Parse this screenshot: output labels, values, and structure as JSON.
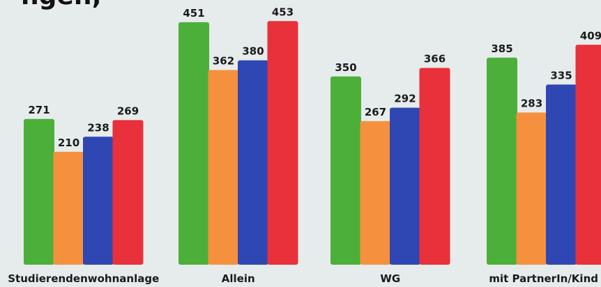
{
  "title_fragment": "ngen;",
  "colors": {
    "background": "#e6eceb",
    "series": [
      "#4caf3a",
      "#f5913e",
      "#2f47b3",
      "#e8313a"
    ]
  },
  "chart_data": {
    "type": "bar",
    "title": "",
    "xlabel": "",
    "ylabel": "",
    "ylim": [
      0,
      460
    ],
    "grid": false,
    "legend": "none",
    "categories": [
      "Studierendenwohnanlage",
      "Allein",
      "WG",
      "mit PartnerIn/Kind"
    ],
    "series": [
      {
        "values": [
          271,
          451,
          350,
          385
        ]
      },
      {
        "values": [
          210,
          362,
          267,
          283
        ]
      },
      {
        "values": [
          238,
          380,
          292,
          335
        ]
      },
      {
        "values": [
          269,
          453,
          366,
          409
        ]
      }
    ]
  }
}
